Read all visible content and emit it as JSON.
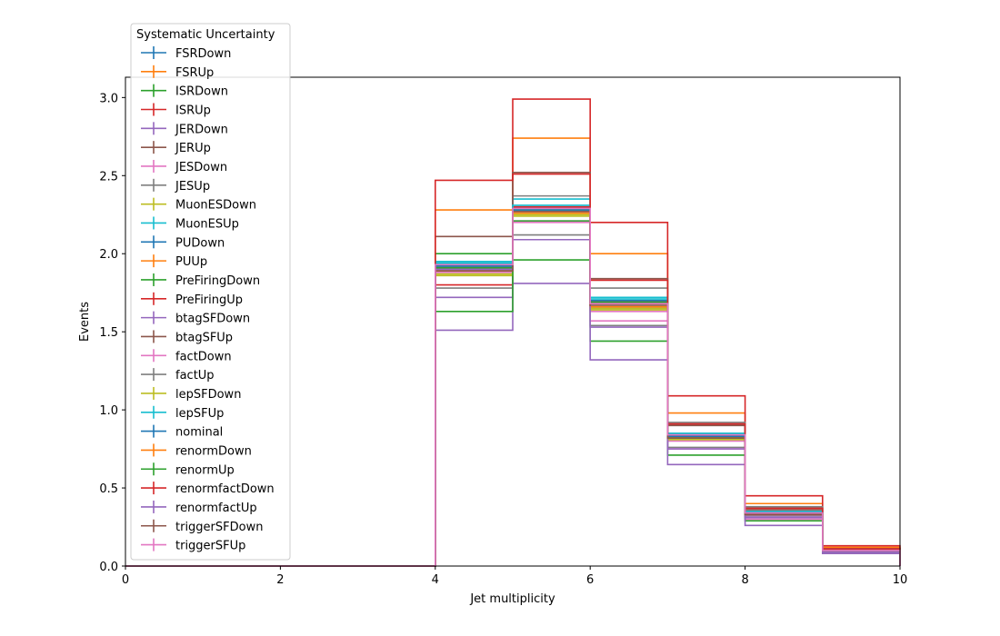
{
  "chart_data": {
    "type": "line",
    "drawstyle": "step-histogram",
    "xlabel": "Jet multiplicity",
    "ylabel": "Events",
    "xlim": [
      0,
      10
    ],
    "ylim": [
      0,
      3.13
    ],
    "xticks": [
      "0",
      "2",
      "4",
      "6",
      "8",
      "10"
    ],
    "yticks": [
      "0.0",
      "0.5",
      "1.0",
      "1.5",
      "2.0",
      "2.5",
      "3.0"
    ],
    "bin_edges": [
      0,
      1,
      2,
      3,
      4,
      5,
      6,
      7,
      8,
      9,
      10
    ],
    "legend": {
      "title": "Systematic Uncertainty",
      "placement": "upper left"
    },
    "series": [
      {
        "name": "FSRDown",
        "color": "#1f77b4",
        "values": [
          0,
          0,
          0,
          0,
          1.93,
          2.27,
          1.68,
          0.83,
          0.33,
          0.1
        ]
      },
      {
        "name": "FSRUp",
        "color": "#ff7f0e",
        "values": [
          0,
          0,
          0,
          0,
          2.28,
          2.74,
          2.0,
          0.98,
          0.4,
          0.12
        ]
      },
      {
        "name": "ISRDown",
        "color": "#2ca02c",
        "values": [
          0,
          0,
          0,
          0,
          2.0,
          1.96,
          1.44,
          0.71,
          0.29,
          0.09
        ]
      },
      {
        "name": "ISRUp",
        "color": "#d62728",
        "values": [
          0,
          0,
          0,
          0,
          1.8,
          2.99,
          2.2,
          1.09,
          0.45,
          0.13
        ]
      },
      {
        "name": "JERDown",
        "color": "#9467bd",
        "values": [
          0,
          0,
          0,
          0,
          1.72,
          2.3,
          1.65,
          0.81,
          0.32,
          0.09
        ]
      },
      {
        "name": "JERUp",
        "color": "#8c564b",
        "values": [
          0,
          0,
          0,
          0,
          2.11,
          2.29,
          1.69,
          0.9,
          0.36,
          0.11
        ]
      },
      {
        "name": "JESDown",
        "color": "#e377c2",
        "values": [
          0,
          0,
          0,
          0,
          1.9,
          2.2,
          1.57,
          0.75,
          0.3,
          0.09
        ]
      },
      {
        "name": "JESUp",
        "color": "#7f7f7f",
        "values": [
          0,
          0,
          0,
          0,
          1.78,
          2.37,
          1.78,
          0.92,
          0.38,
          0.11
        ]
      },
      {
        "name": "MuonESDown",
        "color": "#bcbd22",
        "values": [
          0,
          0,
          0,
          0,
          1.86,
          2.24,
          1.64,
          0.81,
          0.33,
          0.1
        ]
      },
      {
        "name": "MuonESUp",
        "color": "#17becf",
        "values": [
          0,
          0,
          0,
          0,
          1.95,
          2.35,
          1.72,
          0.85,
          0.35,
          0.1
        ]
      },
      {
        "name": "PUDown",
        "color": "#1f77b4",
        "values": [
          0,
          0,
          0,
          0,
          1.94,
          2.29,
          1.7,
          0.84,
          0.34,
          0.1
        ]
      },
      {
        "name": "PUUp",
        "color": "#ff7f0e",
        "values": [
          0,
          0,
          0,
          0,
          1.89,
          2.27,
          1.66,
          0.82,
          0.33,
          0.1
        ]
      },
      {
        "name": "PreFiringDown",
        "color": "#2ca02c",
        "values": [
          0,
          0,
          0,
          0,
          1.91,
          2.28,
          1.68,
          0.83,
          0.34,
          0.1
        ]
      },
      {
        "name": "PreFiringUp",
        "color": "#d62728",
        "values": [
          0,
          0,
          0,
          0,
          1.92,
          2.3,
          1.69,
          0.84,
          0.34,
          0.1
        ]
      },
      {
        "name": "btagSFDown",
        "color": "#9467bd",
        "values": [
          0,
          0,
          0,
          0,
          1.51,
          1.81,
          1.32,
          0.65,
          0.26,
          0.08
        ]
      },
      {
        "name": "btagSFUp",
        "color": "#8c564b",
        "values": [
          0,
          0,
          0,
          0,
          1.9,
          2.52,
          1.84,
          0.91,
          0.37,
          0.11
        ]
      },
      {
        "name": "factDown",
        "color": "#e377c2",
        "values": [
          0,
          0,
          0,
          0,
          1.88,
          2.21,
          1.63,
          0.8,
          0.33,
          0.1
        ]
      },
      {
        "name": "factUp",
        "color": "#7f7f7f",
        "values": [
          0,
          0,
          0,
          0,
          1.92,
          2.12,
          1.54,
          0.76,
          0.31,
          0.09
        ]
      },
      {
        "name": "lepSFDown",
        "color": "#bcbd22",
        "values": [
          0,
          0,
          0,
          0,
          1.87,
          2.25,
          1.65,
          0.81,
          0.33,
          0.1
        ]
      },
      {
        "name": "lepSFUp",
        "color": "#17becf",
        "values": [
          0,
          0,
          0,
          0,
          1.94,
          2.31,
          1.71,
          0.85,
          0.35,
          0.1
        ]
      },
      {
        "name": "nominal",
        "color": "#1f77b4",
        "values": [
          0,
          0,
          0,
          0,
          1.92,
          2.28,
          1.68,
          0.83,
          0.34,
          0.1
        ]
      },
      {
        "name": "renormDown",
        "color": "#ff7f0e",
        "values": [
          0,
          0,
          0,
          0,
          1.89,
          2.26,
          1.66,
          0.82,
          0.33,
          0.1
        ]
      },
      {
        "name": "renormUp",
        "color": "#2ca02c",
        "values": [
          0,
          0,
          0,
          0,
          1.63,
          2.21,
          1.69,
          0.82,
          0.33,
          0.1
        ]
      },
      {
        "name": "renormfactDown",
        "color": "#d62728",
        "values": [
          0,
          0,
          0,
          0,
          2.47,
          2.51,
          1.83,
          0.91,
          0.37,
          0.11
        ]
      },
      {
        "name": "renormfactUp",
        "color": "#9467bd",
        "values": [
          0,
          0,
          0,
          0,
          1.9,
          2.09,
          1.53,
          0.75,
          0.31,
          0.09
        ]
      },
      {
        "name": "triggerSFDown",
        "color": "#8c564b",
        "values": [
          0,
          0,
          0,
          0,
          1.89,
          2.27,
          1.67,
          0.82,
          0.33,
          0.1
        ]
      },
      {
        "name": "triggerSFUp",
        "color": "#e377c2",
        "values": [
          0,
          0,
          0,
          0,
          1.93,
          2.29,
          1.68,
          0.84,
          0.34,
          0.1
        ]
      }
    ]
  }
}
